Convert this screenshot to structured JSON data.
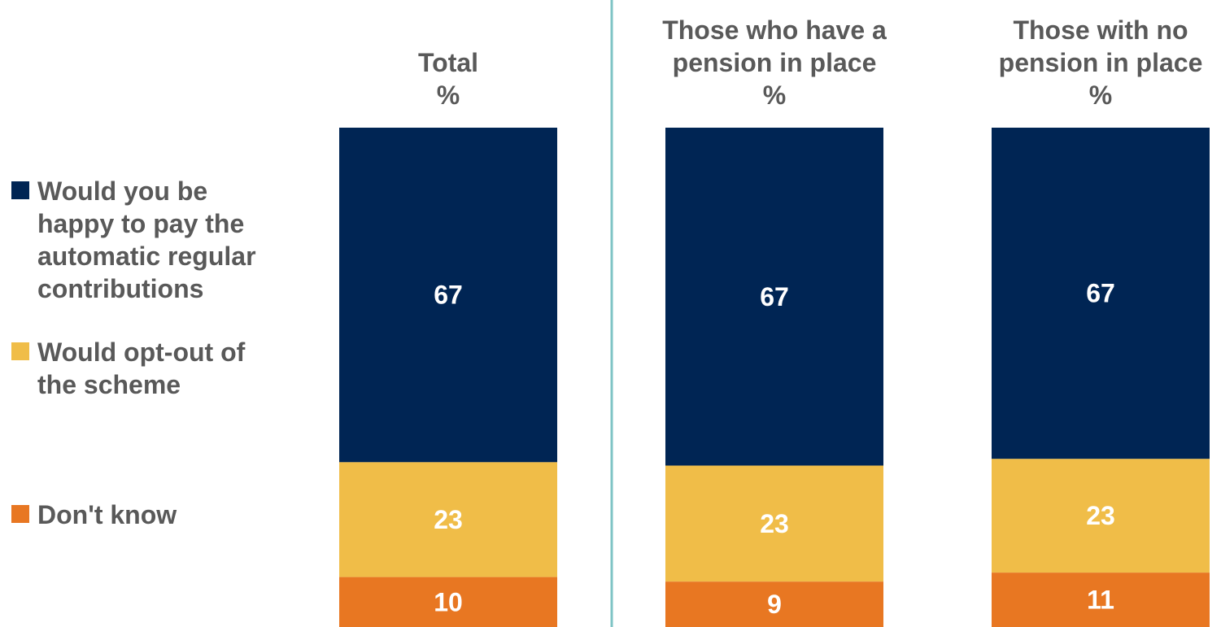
{
  "chart_data": {
    "type": "bar",
    "stacked": true,
    "orientation": "vertical",
    "categories": [
      "Total\n%",
      "Those who have a\npension in place\n%",
      "Those with no\npension in place\n%"
    ],
    "series": [
      {
        "name": "Would you be\nhappy to pay the\nautomatic regular\ncontributions",
        "values": [
          67,
          67,
          67
        ],
        "color": "#002554"
      },
      {
        "name": "Would opt-out of\nthe scheme",
        "values": [
          23,
          23,
          23
        ],
        "color": "#F0BD48"
      },
      {
        "name": "Don't know",
        "values": [
          10,
          9,
          11
        ],
        "color": "#E87722"
      }
    ],
    "value_labels": [
      [
        "67",
        "67",
        "67"
      ],
      [
        "23",
        "23",
        "23"
      ],
      [
        "10",
        "9",
        "11"
      ]
    ],
    "ylim": [
      0,
      100
    ],
    "legend_position": "left",
    "divider_after_category": 0,
    "divider_color": "#7FC4C5",
    "label_color": "#595959",
    "value_label_color": "#ffffff"
  }
}
